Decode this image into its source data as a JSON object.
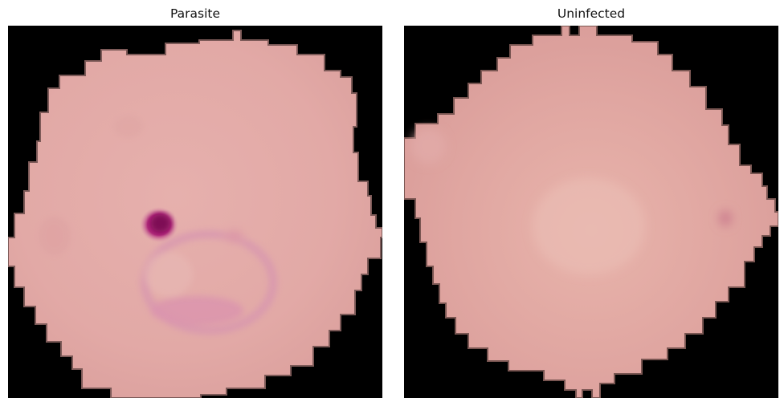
{
  "panels": [
    {
      "title": "Parasite",
      "label_color": "#111111",
      "image": {
        "subject": "red-blood-cell-infected",
        "background_color": "#000000",
        "cell_color": "#e3a9a7",
        "stain_color": "#b0287a"
      }
    },
    {
      "title": "Uninfected",
      "label_color": "#111111",
      "image": {
        "subject": "red-blood-cell-uninfected",
        "background_color": "#000000",
        "cell_color": "#dfa39f"
      }
    }
  ]
}
